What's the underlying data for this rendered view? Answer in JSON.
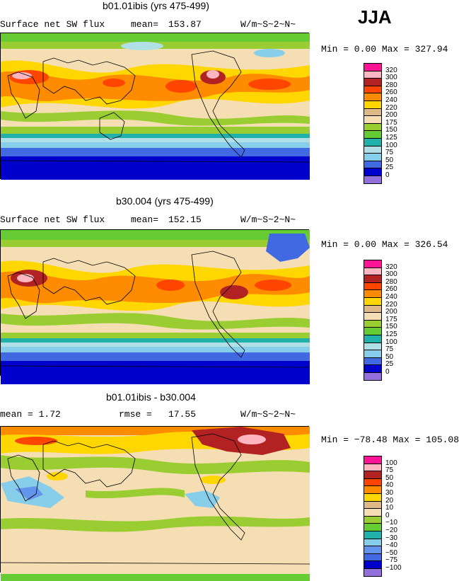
{
  "season": "JJA",
  "panels": [
    {
      "title": "b01.01ibis (yrs 475-499)",
      "left_text": "Surface net SW flux",
      "stat_label": "mean=",
      "stat_value": "153.87",
      "units": "W/m~S~2~N~",
      "minmax": "Min =   0.00 Max = 327.94",
      "levels": [
        "320",
        "300",
        "280",
        "260",
        "240",
        "220",
        "200",
        "175",
        "150",
        "125",
        "100",
        "75",
        "50",
        "25",
        "0"
      ],
      "colors": [
        "#ff1493",
        "#ffb6c1",
        "#b22222",
        "#ff4500",
        "#ff8c00",
        "#ffd700",
        "#deb887",
        "#f5deb3",
        "#9acd32",
        "#66cc33",
        "#20b2aa",
        "#b0e0e6",
        "#87ceeb",
        "#4169e1",
        "#0000cd",
        "#9370db"
      ]
    },
    {
      "title": "b30.004 (yrs 475-499)",
      "left_text": "Surface net SW flux",
      "stat_label": "mean=",
      "stat_value": "152.15",
      "units": "W/m~S~2~N~",
      "minmax": "Min =   0.00 Max = 326.54",
      "levels": [
        "320",
        "300",
        "280",
        "260",
        "240",
        "220",
        "200",
        "175",
        "150",
        "125",
        "100",
        "75",
        "50",
        "25",
        "0"
      ],
      "colors": [
        "#ff1493",
        "#ffb6c1",
        "#b22222",
        "#ff4500",
        "#ff8c00",
        "#ffd700",
        "#deb887",
        "#f5deb3",
        "#9acd32",
        "#66cc33",
        "#20b2aa",
        "#b0e0e6",
        "#87ceeb",
        "#4169e1",
        "#0000cd",
        "#9370db"
      ]
    },
    {
      "title": "b01.01ibis - b30.004",
      "left_text": "mean =    1.72",
      "stat_label": "rmse =",
      "stat_value": "17.55",
      "units": "W/m~S~2~N~",
      "minmax": "Min = −78.48 Max = 105.08",
      "levels": [
        "100",
        "75",
        "50",
        "40",
        "30",
        "20",
        "10",
        "0",
        "−10",
        "−20",
        "−30",
        "−40",
        "−50",
        "−75",
        "−100"
      ],
      "colors": [
        "#ff1493",
        "#ffb6c1",
        "#b22222",
        "#ff4500",
        "#ff8c00",
        "#ffd700",
        "#deb887",
        "#f5deb3",
        "#9acd32",
        "#66cc33",
        "#20b2aa",
        "#87ceeb",
        "#6495ed",
        "#4169e1",
        "#0000cd",
        "#9370db"
      ]
    }
  ]
}
